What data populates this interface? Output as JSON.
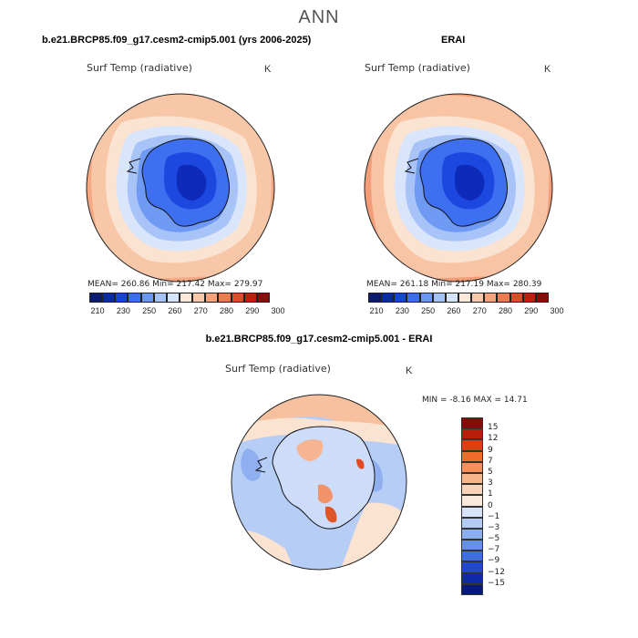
{
  "figure": {
    "title": "ANN"
  },
  "variable": "Surf Temp (radiative)",
  "units": "K",
  "panels": [
    {
      "title": "b.e21.BRCP85.f09_g17.cesm2-cmip5.001 (yrs 2006-2025)",
      "var_label": "Surf Temp (radiative)",
      "units": "K",
      "stats_text": "MEAN= 260.86   Min= 217.42   Max= 279.97",
      "mean": 260.86,
      "min": 217.42,
      "max": 279.97
    },
    {
      "title": "ERAI",
      "var_label": "Surf Temp (radiative)",
      "units": "K",
      "stats_text": "MEAN= 261.18   Min= 217.19   Max= 280.39",
      "mean": 261.18,
      "min": 217.19,
      "max": 280.39
    },
    {
      "title": "b.e21.BRCP85.f09_g17.cesm2-cmip5.001 - ERAI",
      "var_label": "Surf Temp (radiative)",
      "units": "K",
      "stats_text": "MIN =   -8.16  MAX =   14.71",
      "min": -8.16,
      "max": 14.71
    }
  ],
  "colorbar_abs": {
    "colors": [
      "#0a1a6e",
      "#0a2aa8",
      "#1545d8",
      "#3a6df0",
      "#6a96f4",
      "#a5c2f7",
      "#d6e4fa",
      "#fbe8d8",
      "#f8c9ad",
      "#f4a37d",
      "#ef7a52",
      "#e04a28",
      "#c01e10",
      "#8c0a08"
    ],
    "tick_labels": [
      "210",
      "230",
      "250",
      "260",
      "270",
      "280",
      "290",
      "300"
    ]
  },
  "colorbar_diff": {
    "colors": [
      "#8b0a05",
      "#b81c0a",
      "#e03e12",
      "#f06a2a",
      "#f5905a",
      "#f7b58c",
      "#f9d3b8",
      "#fbe8dc",
      "#d7e3f8",
      "#b2cbf5",
      "#8aaff0",
      "#6590ea",
      "#3f6ee0",
      "#2448cc",
      "#0f2aa8",
      "#071a7c"
    ],
    "tick_labels": [
      "15",
      "12",
      "9",
      "7",
      "5",
      "3",
      "1",
      "0",
      "−1",
      "−3",
      "−5",
      "−7",
      "−9",
      "−12",
      "−15"
    ]
  }
}
